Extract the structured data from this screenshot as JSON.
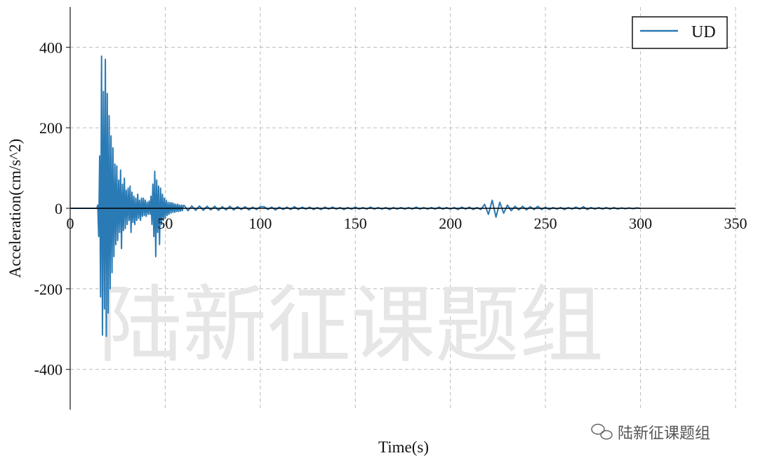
{
  "chart_data": {
    "type": "line",
    "title": "",
    "xlabel": "Time(s)",
    "ylabel": "Acceleration(cm/s^2)",
    "xlim": [
      0,
      350
    ],
    "ylim": [
      -500,
      500
    ],
    "xticks": [
      "0",
      "50",
      "100",
      "150",
      "200",
      "250",
      "300",
      "350"
    ],
    "yticks": [
      "400",
      "200",
      "0",
      "-200",
      "-400"
    ],
    "grid": true,
    "legend": {
      "position": "top-right",
      "entries": [
        "UD"
      ]
    },
    "series": [
      {
        "name": "UD",
        "color": "#2a7ab5",
        "segments": [
          {
            "t0": 14,
            "dt": 0.5,
            "values": [
              0,
              8,
              -70,
              130,
              -220,
              378,
              -315,
              290,
              -250,
              370,
              -318,
              285,
              -260,
              230,
              -200,
              180,
              -160,
              150,
              -120,
              110,
              -90,
              105,
              -80,
              70,
              -60,
              95,
              -100,
              60,
              -55,
              75,
              -50,
              45,
              -40,
              50,
              -30,
              55,
              -60,
              40,
              -35,
              30,
              -40,
              25,
              -30,
              35,
              -25,
              20,
              -30,
              25,
              -20,
              25,
              -18,
              20,
              -20,
              15,
              -15,
              18,
              -15,
              30,
              -40,
              60,
              -70,
              92,
              -120,
              70,
              -60,
              55,
              -90,
              50,
              -40,
              35,
              -30,
              25,
              -25,
              20,
              -18,
              15,
              -15,
              14,
              -12,
              14,
              -10,
              12,
              -10,
              10,
              -8,
              10,
              -8,
              8,
              -7,
              8,
              -6,
              7
            ]
          },
          {
            "t0": 60,
            "dt": 2,
            "values": [
              7,
              -6,
              6,
              -5,
              6,
              -5,
              5,
              -4,
              5,
              -5,
              4,
              -4,
              5,
              -4,
              4,
              -3,
              4,
              -4,
              3,
              -3,
              4,
              4,
              -3,
              3,
              -4,
              3,
              -3,
              3,
              -3,
              4,
              -3,
              3,
              -2,
              3,
              -3,
              2,
              -3,
              3,
              -2,
              3,
              -2,
              2,
              -3,
              2,
              -2,
              3,
              -2,
              2,
              -2,
              3,
              -2,
              2,
              -2,
              2,
              -3,
              2,
              -2,
              2,
              -2,
              2,
              -2,
              3,
              -2,
              2,
              -2,
              2,
              -2,
              3,
              -2,
              2,
              -2,
              2,
              -3,
              3,
              -2,
              3,
              -3,
              2,
              -3,
              10,
              -15,
              20,
              -22,
              15,
              -12,
              8,
              -6,
              5,
              -4,
              5,
              -4,
              4,
              -3,
              5,
              -3,
              3,
              -3,
              2,
              -2,
              2,
              -3,
              2,
              -2,
              3,
              -2,
              4,
              -3,
              2,
              -2,
              2,
              -2,
              2,
              -2,
              2,
              -2,
              1,
              -1,
              1,
              -1,
              1,
              0
            ]
          }
        ]
      }
    ]
  },
  "watermark": {
    "text": "陆新征课题组",
    "source_label": "陆新征课题组"
  }
}
